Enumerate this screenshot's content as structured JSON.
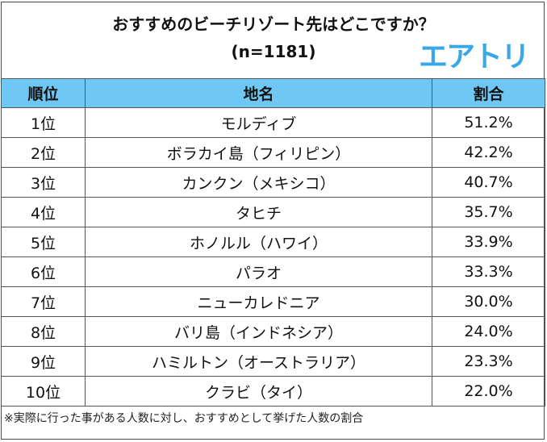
{
  "title": "おすすめのビーチリゾート先はどこですか？",
  "sample": "(n=1181)",
  "logo": {
    "text": "エアトリ",
    "color": "#3aa8e8"
  },
  "header_color": "#6ec8f3",
  "columns": [
    "順位",
    "地名",
    "割合"
  ],
  "rows": [
    {
      "rank": "1位",
      "name": "モルディブ",
      "pct": "51.2%"
    },
    {
      "rank": "2位",
      "name": "ボラカイ島（フィリピン）",
      "pct": "42.2%"
    },
    {
      "rank": "3位",
      "name": "カンクン（メキシコ）",
      "pct": "40.7%"
    },
    {
      "rank": "4位",
      "name": "タヒチ",
      "pct": "35.7%"
    },
    {
      "rank": "5位",
      "name": "ホノルル（ハワイ）",
      "pct": "33.9%"
    },
    {
      "rank": "6位",
      "name": "パラオ",
      "pct": "33.3%"
    },
    {
      "rank": "7位",
      "name": "ニューカレドニア",
      "pct": "30.0%"
    },
    {
      "rank": "8位",
      "name": "バリ島（インドネシア）",
      "pct": "24.0%"
    },
    {
      "rank": "9位",
      "name": "ハミルトン（オーストラリア）",
      "pct": "23.3%"
    },
    {
      "rank": "10位",
      "name": "クラビ（タイ）",
      "pct": "22.0%"
    }
  ],
  "footnote": "※実際に行った事がある人数に対し、おすすめとして挙げた人数の割合"
}
